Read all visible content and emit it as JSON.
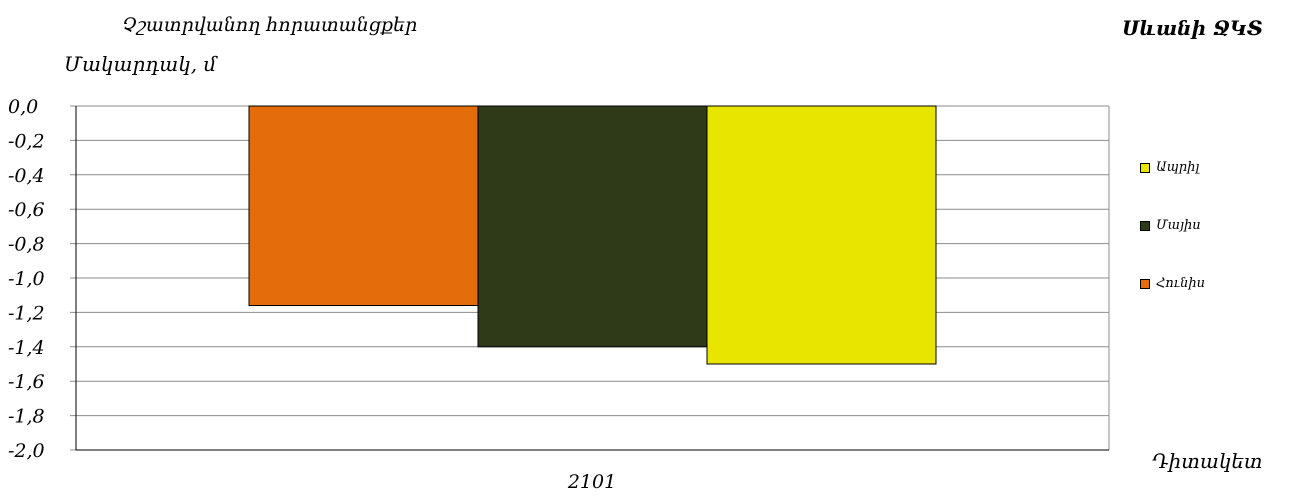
{
  "header": {
    "subtitle": "Չշատրվանող հորատանցքեր",
    "region": "Սևանի ՋԿՏ"
  },
  "chart_data": {
    "type": "bar",
    "title": "",
    "ylabel": "Մակարդակ, մ",
    "xlabel": "Դիտակետ",
    "categories": [
      "2101"
    ],
    "ylim": [
      -2.0,
      0.0
    ],
    "yticks": [
      "0,0",
      "-0,2",
      "-0,4",
      "-0,6",
      "-0,8",
      "-1,0",
      "-1,2",
      "-1,4",
      "-1,6",
      "-1,8",
      "-2,0"
    ],
    "ytick_values": [
      0,
      -0.2,
      -0.4,
      -0.6,
      -0.8,
      -1.0,
      -1.2,
      -1.4,
      -1.6,
      -1.8,
      -2.0
    ],
    "grid": true,
    "legend_position": "right",
    "series": [
      {
        "name": "Հունիս",
        "color": "#E46C0A",
        "values": [
          -1.16
        ]
      },
      {
        "name": "Մայիս",
        "color": "#2E3A18",
        "values": [
          -1.4
        ]
      },
      {
        "name": "Ապրիլ",
        "color": "#E8E600",
        "values": [
          -1.5
        ]
      }
    ],
    "legend_order": [
      "Ապրիլ",
      "Մայիս",
      "Հունիս"
    ]
  }
}
